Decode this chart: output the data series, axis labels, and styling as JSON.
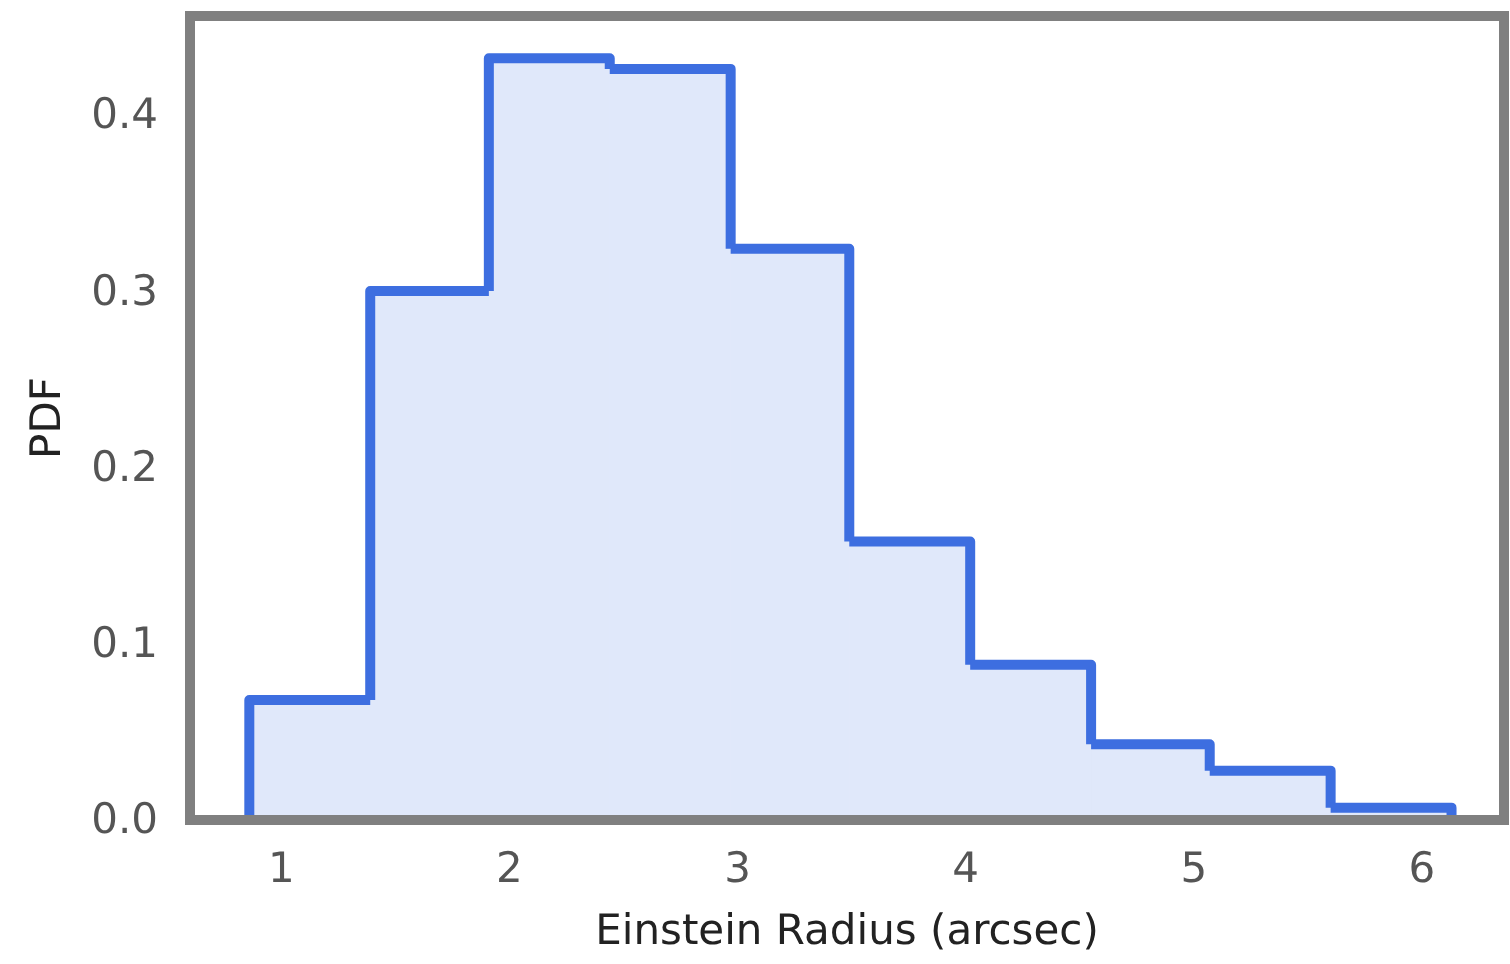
{
  "chart_data": {
    "type": "histogram",
    "xlabel": "Einstein Radius (arcsec)",
    "ylabel": "PDF",
    "bins": [
      0.86,
      1.39,
      1.91,
      2.44,
      2.97,
      3.49,
      4.02,
      4.55,
      5.07,
      5.6,
      6.13
    ],
    "values": [
      0.068,
      0.3,
      0.432,
      0.426,
      0.324,
      0.158,
      0.088,
      0.043,
      0.028,
      0.007
    ],
    "color": "#3d6ee0",
    "xlim": [
      0.6,
      6.36
    ],
    "xticks": [
      1,
      2,
      3,
      4,
      5,
      6
    ],
    "ylim": [
      0,
      0.456
    ],
    "yticks": [
      {
        "value": 0,
        "label": "0.0"
      },
      {
        "value": 0.1,
        "label": "0.1"
      },
      {
        "value": 0.2,
        "label": "0.2"
      },
      {
        "value": 0.3,
        "label": "0.3"
      },
      {
        "value": 0.4,
        "label": "0.4"
      }
    ],
    "grid": false
  }
}
